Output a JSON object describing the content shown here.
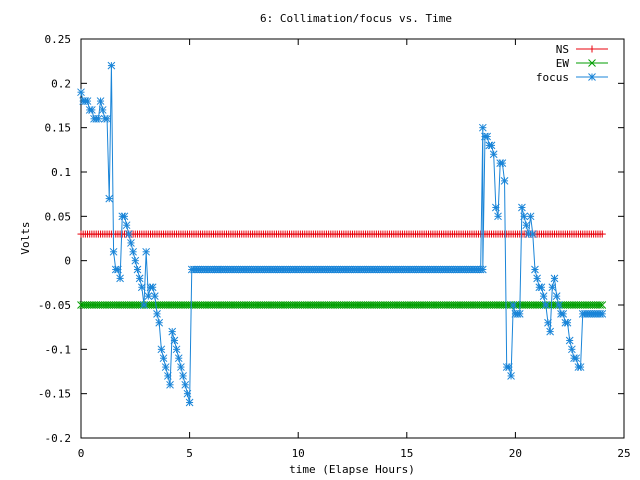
{
  "chart_data": {
    "type": "line",
    "title": "6: Collimation/focus vs. Time",
    "xlabel": "time (Elapse Hours)",
    "ylabel": "Volts",
    "xlim": [
      0,
      25
    ],
    "ylim": [
      -0.2,
      0.25
    ],
    "x_ticks": [
      0,
      5,
      10,
      15,
      20,
      25
    ],
    "y_ticks": [
      -0.2,
      -0.15,
      -0.1,
      -0.05,
      0,
      0.05,
      0.1,
      0.15,
      0.2,
      0.25
    ],
    "x_tick_labels": [
      "0",
      "5",
      "10",
      "15",
      "20",
      "25"
    ],
    "y_tick_labels": [
      "-0.2",
      "-0.15",
      "-0.1",
      "-0.05",
      "0",
      "0.05",
      "0.1",
      "0.15",
      "0.2",
      "0.25"
    ],
    "grid": false,
    "legend_position": "top-right",
    "series": [
      {
        "name": "NS",
        "color": "#e8000b",
        "marker": "plus",
        "x_range": [
          0,
          24
        ],
        "step": 0.1,
        "value": 0.03
      },
      {
        "name": "EW",
        "color": "#009e00",
        "marker": "cross",
        "x_range": [
          0,
          24
        ],
        "step": 0.1,
        "value": -0.05
      },
      {
        "name": "focus",
        "color": "#1a85d8",
        "marker": "star",
        "x": [
          0.0,
          0.1,
          0.2,
          0.3,
          0.4,
          0.5,
          0.6,
          0.7,
          0.8,
          0.9,
          1.0,
          1.1,
          1.2,
          1.3,
          1.4,
          1.5,
          1.6,
          1.7,
          1.8,
          1.9,
          2.0,
          2.1,
          2.2,
          2.3,
          2.4,
          2.5,
          2.6,
          2.7,
          2.8,
          2.9,
          3.0,
          3.1,
          3.2,
          3.3,
          3.4,
          3.5,
          3.6,
          3.7,
          3.8,
          3.9,
          4.0,
          4.1,
          4.2,
          4.3,
          4.4,
          4.5,
          4.6,
          4.7,
          4.8,
          4.9,
          5.0,
          5.1,
          5.2,
          5.3,
          5.4,
          5.5,
          5.6,
          5.7,
          5.8,
          5.9,
          6.0,
          6.1,
          6.2,
          6.3,
          18.5,
          18.6,
          18.7,
          18.8,
          18.9,
          19.0,
          19.1,
          19.2,
          19.3,
          19.4,
          19.5,
          19.6,
          19.7,
          19.8,
          19.9,
          20.0,
          20.1,
          20.2,
          20.3,
          20.4,
          20.5,
          20.6,
          20.7,
          20.8,
          20.9,
          21.0,
          21.1,
          21.2,
          21.3,
          21.4,
          21.5,
          21.6,
          21.7,
          21.8,
          21.9,
          22.0,
          22.1,
          22.2,
          22.3,
          22.4,
          22.5,
          22.6,
          22.7,
          22.8,
          22.9,
          23.0,
          23.1,
          23.2,
          23.3,
          23.4,
          23.5,
          23.6,
          23.7,
          23.8,
          23.9,
          24.0
        ],
        "values": [
          0.19,
          0.18,
          0.18,
          0.18,
          0.17,
          0.17,
          0.16,
          0.16,
          0.16,
          0.18,
          0.17,
          0.16,
          0.16,
          0.07,
          0.22,
          0.01,
          -0.01,
          -0.01,
          -0.02,
          0.05,
          0.05,
          0.04,
          0.03,
          0.02,
          0.01,
          0.0,
          -0.01,
          -0.02,
          -0.03,
          -0.05,
          0.01,
          -0.04,
          -0.03,
          -0.03,
          -0.04,
          -0.06,
          -0.07,
          -0.1,
          -0.11,
          -0.12,
          -0.13,
          -0.14,
          -0.08,
          -0.09,
          -0.1,
          -0.11,
          -0.12,
          -0.13,
          -0.14,
          -0.15,
          -0.16,
          -0.01,
          -0.01,
          -0.01,
          -0.01,
          -0.01,
          -0.01,
          -0.01,
          -0.01,
          -0.01,
          -0.01,
          -0.01,
          -0.01,
          -0.01,
          0.15,
          0.14,
          0.14,
          0.13,
          0.13,
          0.12,
          0.06,
          0.05,
          0.11,
          0.11,
          0.09,
          -0.12,
          -0.12,
          -0.13,
          -0.05,
          -0.06,
          -0.06,
          -0.06,
          0.06,
          0.05,
          0.04,
          0.03,
          0.05,
          0.03,
          -0.01,
          -0.02,
          -0.03,
          -0.03,
          -0.04,
          -0.05,
          -0.07,
          -0.08,
          -0.03,
          -0.02,
          -0.04,
          -0.05,
          -0.06,
          -0.06,
          -0.07,
          -0.07,
          -0.09,
          -0.1,
          -0.11,
          -0.11,
          -0.12,
          -0.12,
          -0.06,
          -0.06,
          -0.06,
          -0.06,
          -0.06,
          -0.06,
          -0.06,
          -0.06,
          -0.06,
          -0.06
        ],
        "flat_segment": {
          "x_range": [
            6.3,
            18.5
          ],
          "step": 0.1,
          "value": -0.01
        }
      }
    ]
  }
}
